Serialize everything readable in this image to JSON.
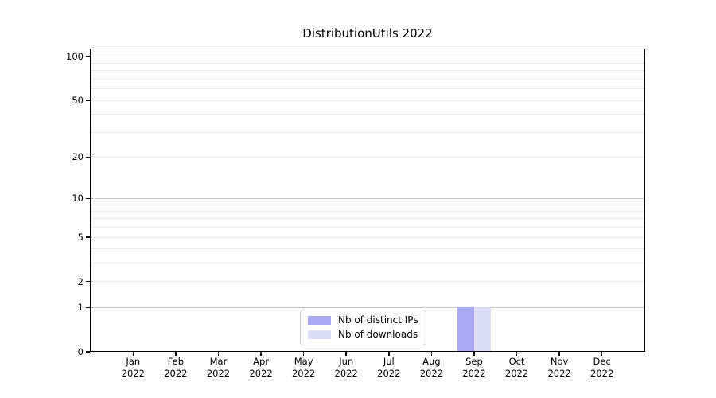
{
  "title": "DistributionUtils 2022",
  "colors": {
    "distinct_ips": "#a9a9f4",
    "downloads": "#dcdcf8",
    "grid_major": "#c8c8c8",
    "grid_minor": "#ebebeb",
    "axis": "#000000",
    "legend_border": "#cccccc",
    "background": "#ffffff"
  },
  "legend": {
    "items": [
      {
        "label": "Nb of distinct IPs",
        "color": "#a9a9f4"
      },
      {
        "label": "Nb of downloads",
        "color": "#dcdcf8"
      }
    ]
  },
  "axes": {
    "y_ticks": [
      0,
      1,
      2,
      5,
      10,
      20,
      50,
      100
    ],
    "months": [
      "Jan",
      "Feb",
      "Mar",
      "Apr",
      "May",
      "Jun",
      "Jul",
      "Aug",
      "Sep",
      "Oct",
      "Nov",
      "Dec"
    ],
    "x_year": "2022"
  },
  "chart_data": {
    "type": "bar",
    "title": "DistributionUtils 2022",
    "categories": [
      "Jan 2022",
      "Feb 2022",
      "Mar 2022",
      "Apr 2022",
      "May 2022",
      "Jun 2022",
      "Jul 2022",
      "Aug 2022",
      "Sep 2022",
      "Oct 2022",
      "Nov 2022",
      "Dec 2022"
    ],
    "series": [
      {
        "name": "Nb of distinct IPs",
        "color": "#a9a9f4",
        "values": [
          0,
          0,
          0,
          0,
          0,
          0,
          0,
          0,
          1,
          0,
          0,
          0
        ]
      },
      {
        "name": "Nb of downloads",
        "color": "#dcdcf8",
        "values": [
          0,
          0,
          0,
          0,
          0,
          0,
          0,
          0,
          1,
          0,
          0,
          0
        ]
      }
    ],
    "yscale": "log1p",
    "ylim": [
      0,
      115
    ],
    "yticks": [
      0,
      1,
      2,
      5,
      10,
      20,
      50,
      100
    ],
    "grid": "horizontal",
    "grid_minor_values": [
      2,
      3,
      4,
      5,
      6,
      7,
      8,
      9,
      20,
      30,
      40,
      50,
      60,
      70,
      80,
      90
    ],
    "grid_major_values": [
      1,
      10,
      100
    ],
    "legend_position": "lower center"
  }
}
